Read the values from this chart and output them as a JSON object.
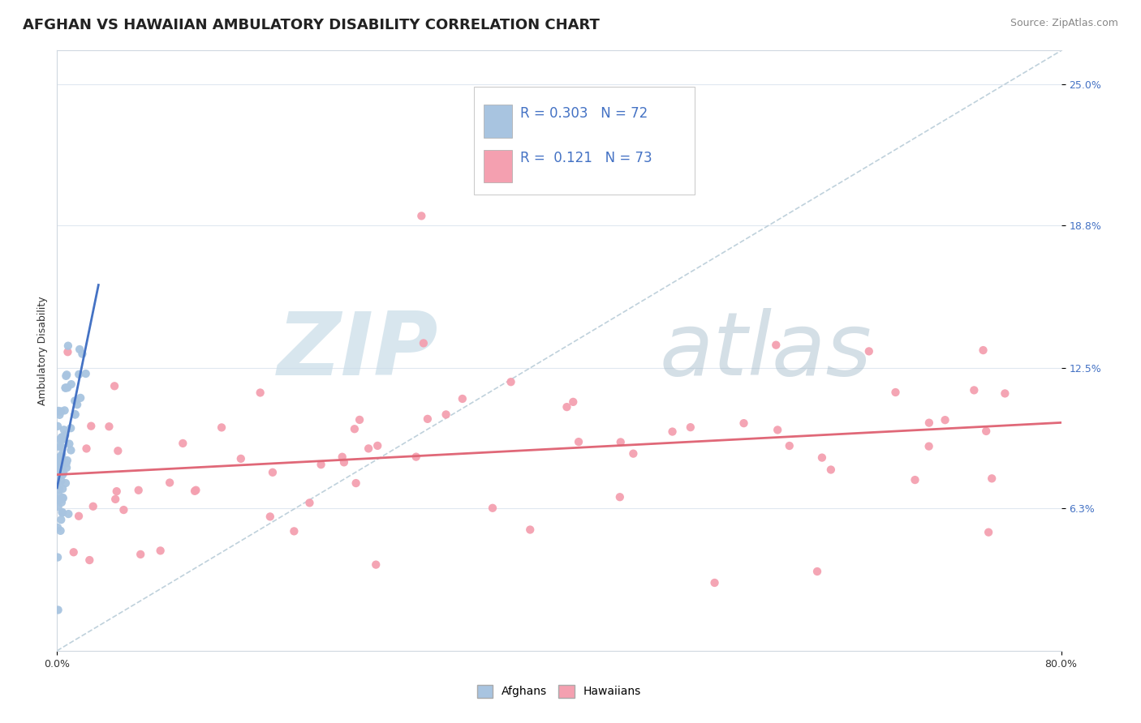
{
  "title": "AFGHAN VS HAWAIIAN AMBULATORY DISABILITY CORRELATION CHART",
  "source": "Source: ZipAtlas.com",
  "ylabel": "Ambulatory Disability",
  "ytick_labels": [
    "6.3%",
    "12.5%",
    "18.8%",
    "25.0%"
  ],
  "ytick_values": [
    0.063,
    0.125,
    0.188,
    0.25
  ],
  "xmin": 0.0,
  "xmax": 0.8,
  "ymin": 0.0,
  "ymax": 0.265,
  "afghan_R": 0.303,
  "afghan_N": 72,
  "hawaiian_R": 0.121,
  "hawaiian_N": 73,
  "afghan_color": "#a8c4e0",
  "hawaiian_color": "#f4a0b0",
  "afghan_line_color": "#4472c4",
  "hawaiian_line_color": "#e06878",
  "ref_line_color": "#b8ccd8",
  "tick_color": "#4472c4",
  "legend_text_color": "#4472c4",
  "background_color": "#ffffff",
  "watermark_ZIP_color": "#c8dce8",
  "watermark_atlas_color": "#a0b8c8",
  "title_fontsize": 13,
  "axis_label_fontsize": 9,
  "tick_fontsize": 9,
  "legend_fontsize": 12,
  "source_fontsize": 9,
  "grid_color": "#e0e8f0",
  "border_color": "#d0d8e0"
}
